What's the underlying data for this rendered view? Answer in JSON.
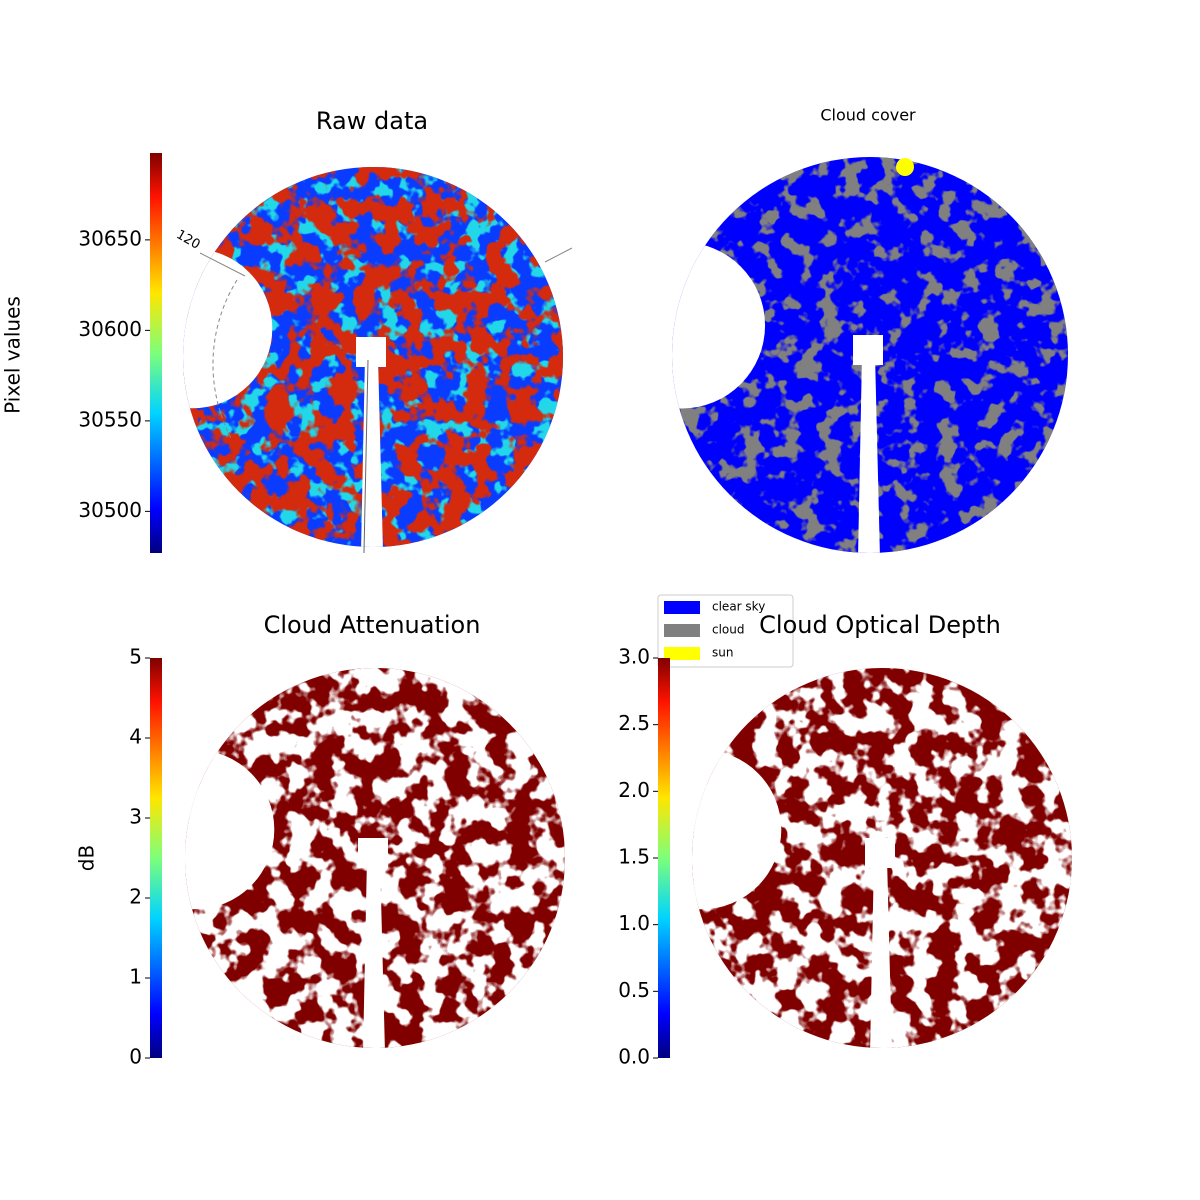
{
  "chart_data": [
    {
      "type": "image",
      "title": "Raw data",
      "colorbar_label": "Pixel values",
      "colormap": "jet",
      "ylim": [
        30477,
        30698
      ],
      "yticks": [
        30500,
        30550,
        30600,
        30650
      ],
      "annotations": [
        "120"
      ]
    },
    {
      "type": "image",
      "title": "Cloud cover",
      "series": [
        {
          "name": "clear sky",
          "color": "#0000ff"
        },
        {
          "name": "cloud",
          "color": "#808080"
        },
        {
          "name": "sun",
          "color": "#ffff00"
        }
      ]
    },
    {
      "type": "image",
      "title": "Cloud Attenuation",
      "colorbar_label": "dB",
      "colormap": "jet",
      "color": "#800000",
      "ylim": [
        0,
        5
      ],
      "yticks": [
        0,
        1,
        2,
        3,
        4,
        5
      ]
    },
    {
      "type": "image",
      "title": "Cloud Optical Depth",
      "colormap": "jet",
      "color": "#800000",
      "ylim": [
        0,
        3
      ],
      "yticks": [
        {
          "value": 0,
          "label": "0.0"
        },
        {
          "value": 0.5,
          "label": "0.5"
        },
        {
          "value": 1,
          "label": "1.0"
        },
        {
          "value": 1.5,
          "label": "1.5"
        },
        {
          "value": 2,
          "label": "2.0"
        },
        {
          "value": 2.5,
          "label": "2.5"
        },
        {
          "value": 3,
          "label": "3.0"
        }
      ]
    }
  ]
}
